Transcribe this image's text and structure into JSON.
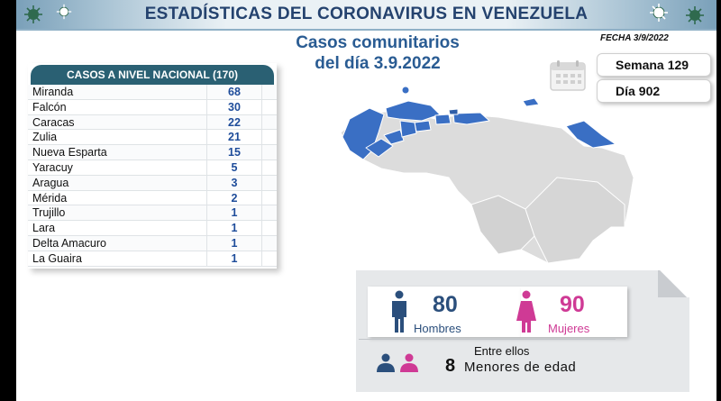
{
  "header": {
    "title": "ESTADÍSTICAS DEL CORONAVIRUS EN VENEZUELA"
  },
  "subtitle": {
    "line1": "Casos comunitarios",
    "line2": "del día 3.9.2022"
  },
  "fecha": "FECHA 3/9/2022",
  "badges": {
    "week_label": "Semana",
    "week_value": "129",
    "day_label": "Día",
    "day_value": "902"
  },
  "table": {
    "header": "CASOS A NIVEL NACIONAL  (170)",
    "rows": [
      {
        "state": "Miranda",
        "cases": "68"
      },
      {
        "state": "Falcón",
        "cases": "30"
      },
      {
        "state": "Caracas",
        "cases": "22"
      },
      {
        "state": "Zulia",
        "cases": "21"
      },
      {
        "state": "Nueva Esparta",
        "cases": "15"
      },
      {
        "state": "Yaracuy",
        "cases": "5"
      },
      {
        "state": "Aragua",
        "cases": "3"
      },
      {
        "state": "Mérida",
        "cases": "2"
      },
      {
        "state": "Trujillo",
        "cases": "1"
      },
      {
        "state": "Lara",
        "cases": "1"
      },
      {
        "state": "Delta Amacuro",
        "cases": "1"
      },
      {
        "state": "La Guaira",
        "cases": "1"
      }
    ]
  },
  "gender": {
    "men_value": "80",
    "men_label": "Hombres",
    "women_value": "90",
    "women_label": "Mujeres",
    "minors_intro": "Entre ellos",
    "minors_value": "8",
    "minors_label": "Menores de edad"
  },
  "colors": {
    "title": "#24426e",
    "subtitle": "#2a5c93",
    "table_header": "#2a6073",
    "table_value": "#1e4c9a",
    "map_highlight": "#3a6fc4",
    "map_base": "#dcdcdc",
    "men": "#2b4f7c",
    "women": "#cf3a95"
  },
  "icons": [
    "coronavirus-icon",
    "calendar-icon",
    "man-icon",
    "woman-icon",
    "people-pair-icon"
  ]
}
